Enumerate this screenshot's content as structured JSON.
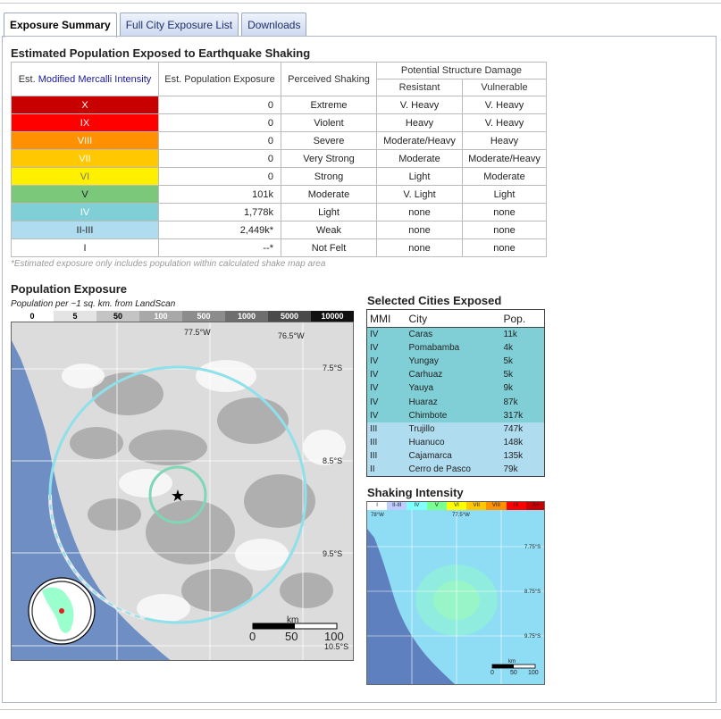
{
  "tabs": [
    {
      "label": "Exposure Summary",
      "active": true
    },
    {
      "label": "Full City Exposure List",
      "active": false
    },
    {
      "label": "Downloads",
      "active": false
    }
  ],
  "exposure": {
    "title": "Estimated Population Exposed to Earthquake Shaking",
    "col_mmi_prefix": "Est. ",
    "col_mmi_link": "Modified Mercalli Intensity",
    "col_pop": "Est. Population Exposure",
    "col_shaking": "Perceived Shaking",
    "col_damage": "Potential Structure Damage",
    "col_resistant": "Resistant",
    "col_vulnerable": "Vulnerable",
    "rows": [
      {
        "mmi": "X",
        "pop": "0",
        "shaking": "Extreme",
        "resistant": "V. Heavy",
        "vulnerable": "V. Heavy",
        "color": "#c80000",
        "text_color": "#ffffff"
      },
      {
        "mmi": "IX",
        "pop": "0",
        "shaking": "Violent",
        "resistant": "Heavy",
        "vulnerable": "V. Heavy",
        "color": "#ff0000",
        "text_color": "#ffffff"
      },
      {
        "mmi": "VIII",
        "pop": "0",
        "shaking": "Severe",
        "resistant": "Moderate/Heavy",
        "vulnerable": "Heavy",
        "color": "#ff9100",
        "text_color": "#ffffff"
      },
      {
        "mmi": "VII",
        "pop": "0",
        "shaking": "Very Strong",
        "resistant": "Moderate",
        "vulnerable": "Moderate/Heavy",
        "color": "#ffc800",
        "text_color": "#ffffff"
      },
      {
        "mmi": "VI",
        "pop": "0",
        "shaking": "Strong",
        "resistant": "Light",
        "vulnerable": "Moderate",
        "color": "#fff000",
        "text_color": "#777777"
      },
      {
        "mmi": "V",
        "pop": "101k",
        "shaking": "Moderate",
        "resistant": "V. Light",
        "vulnerable": "Light",
        "color": "#7bc87b",
        "text_color": "#222222"
      },
      {
        "mmi": "IV",
        "pop": "1,778k",
        "shaking": "Light",
        "resistant": "none",
        "vulnerable": "none",
        "color": "#80cfd6",
        "text_color": "#ffffff"
      },
      {
        "mmi": "II-III",
        "pop": "2,449k*",
        "shaking": "Weak",
        "resistant": "none",
        "vulnerable": "none",
        "color": "#b0dcf0",
        "text_color": "#222222"
      },
      {
        "mmi": "I",
        "pop": "--*",
        "shaking": "Not Felt",
        "resistant": "none",
        "vulnerable": "none",
        "color": "#ffffff",
        "text_color": "#222222"
      }
    ],
    "footnote": "*Estimated exposure only includes population within calculated shake map area"
  },
  "population": {
    "title": "Population Exposure",
    "subtitle": "Population per ~1 sq. km. from LandScan",
    "scale": [
      {
        "label": "0",
        "bg": "#ffffff",
        "fg": "#000000"
      },
      {
        "label": "5",
        "bg": "#e4e4e4",
        "fg": "#000000"
      },
      {
        "label": "50",
        "bg": "#c4c4c4",
        "fg": "#000000"
      },
      {
        "label": "100",
        "bg": "#a8a8a8",
        "fg": "#ffffff"
      },
      {
        "label": "500",
        "bg": "#8c8c8c",
        "fg": "#ffffff"
      },
      {
        "label": "1000",
        "bg": "#6e6e6e",
        "fg": "#ffffff"
      },
      {
        "label": "5000",
        "bg": "#4a4a4a",
        "fg": "#ffffff"
      },
      {
        "label": "10000",
        "bg": "#111111",
        "fg": "#ffffff"
      }
    ],
    "map_labels": {
      "lon1": "77.5°W",
      "lon2": "76.5°W",
      "lat1": "7.5°S",
      "lat2": "8.5°S",
      "lat3": "9.5°S",
      "lat4": "10.5°S",
      "km": "km",
      "s0": "0",
      "s50": "50",
      "s100": "100"
    }
  },
  "cities": {
    "title": "Selected Cities Exposed",
    "headers": [
      "MMI",
      "City",
      "Pop."
    ],
    "rows": [
      {
        "mmi": "IV",
        "city": "Caras",
        "pop": "11k",
        "bg": "#80cfd6"
      },
      {
        "mmi": "IV",
        "city": "Pomabamba",
        "pop": "4k",
        "bg": "#80cfd6"
      },
      {
        "mmi": "IV",
        "city": "Yungay",
        "pop": "5k",
        "bg": "#80cfd6"
      },
      {
        "mmi": "IV",
        "city": "Carhuaz",
        "pop": "5k",
        "bg": "#80cfd6"
      },
      {
        "mmi": "IV",
        "city": "Yauya",
        "pop": "9k",
        "bg": "#80cfd6"
      },
      {
        "mmi": "IV",
        "city": "Huaraz",
        "pop": "87k",
        "bg": "#80cfd6"
      },
      {
        "mmi": "IV",
        "city": "Chimbote",
        "pop": "317k",
        "bg": "#80cfd6"
      },
      {
        "mmi": "III",
        "city": "Trujillo",
        "pop": "747k",
        "bg": "#b0dcf0"
      },
      {
        "mmi": "III",
        "city": "Huanuco",
        "pop": "148k",
        "bg": "#b0dcf0"
      },
      {
        "mmi": "III",
        "city": "Cajamarca",
        "pop": "135k",
        "bg": "#b0dcf0"
      },
      {
        "mmi": "II",
        "city": "Cerro de Pasco",
        "pop": "79k",
        "bg": "#b0dcf0"
      }
    ]
  },
  "intensity": {
    "title": "Shaking Intensity",
    "scale": [
      {
        "label": "I",
        "bg": "#ffffff"
      },
      {
        "label": "II-III",
        "bg": "#bfccff"
      },
      {
        "label": "IV",
        "bg": "#80ffff"
      },
      {
        "label": "V",
        "bg": "#7aff93"
      },
      {
        "label": "VI",
        "bg": "#ffff00"
      },
      {
        "label": "VII",
        "bg": "#ffc800"
      },
      {
        "label": "VIII",
        "bg": "#ff9100"
      },
      {
        "label": "IX",
        "bg": "#ff0000"
      },
      {
        "label": "X+",
        "bg": "#c80000"
      }
    ],
    "map_labels": {
      "lon1": "78°W",
      "lon2": "77.5°W",
      "lat1": "7.75°S",
      "lat2": "8.75°S",
      "lat3": "9.75°S",
      "km": "km",
      "s0": "0",
      "s50": "50",
      "s100": "100"
    }
  }
}
